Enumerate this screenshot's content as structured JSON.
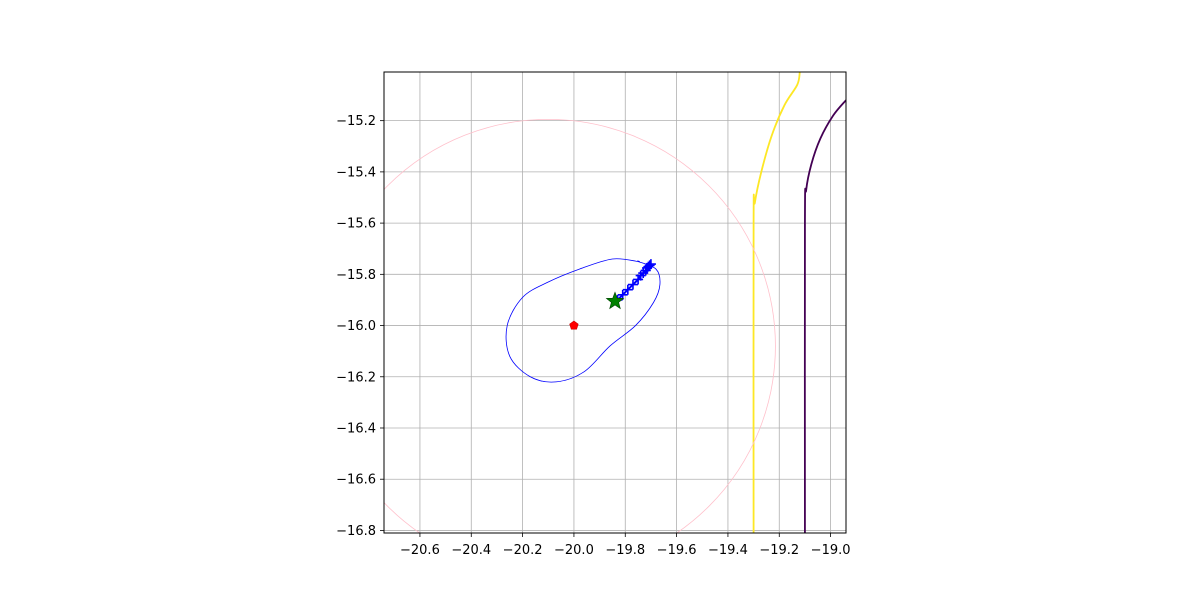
{
  "chart_data": {
    "type": "line",
    "title": "",
    "xlabel": "",
    "ylabel": "",
    "xlim": [
      -20.74,
      -18.94
    ],
    "ylim": [
      -16.81,
      -15.01
    ],
    "grid": true,
    "x_ticks": [
      -20.6,
      -20.4,
      -20.2,
      -20.0,
      -19.8,
      -19.6,
      -19.4,
      -19.2,
      -19.0
    ],
    "x_tick_labels": [
      "−20.6",
      "−20.4",
      "−20.2",
      "−20.0",
      "−19.8",
      "−19.6",
      "−19.4",
      "−19.2",
      "−19.0"
    ],
    "y_ticks": [
      -15.2,
      -15.4,
      -15.6,
      -15.8,
      -16.0,
      -16.2,
      -16.4,
      -16.6,
      -16.8
    ],
    "y_tick_labels": [
      "−15.2",
      "−15.4",
      "−15.6",
      "−15.8",
      "−16.0",
      "−16.2",
      "−16.4",
      "−16.6",
      "−16.8"
    ],
    "series": [
      {
        "kind": "contour",
        "color": "#fde725",
        "points": [
          [
            -19.3,
            -16.81
          ],
          [
            -19.3,
            -15.6
          ],
          [
            -19.295,
            -15.52
          ],
          [
            -19.27,
            -15.4
          ],
          [
            -19.23,
            -15.26
          ],
          [
            -19.18,
            -15.14
          ],
          [
            -19.13,
            -15.06
          ],
          [
            -19.12,
            -15.01
          ]
        ]
      },
      {
        "kind": "contour",
        "color": "#440154",
        "points": [
          [
            -19.1,
            -16.81
          ],
          [
            -19.1,
            -15.6
          ],
          [
            -19.095,
            -15.47
          ],
          [
            -19.075,
            -15.37
          ],
          [
            -19.04,
            -15.27
          ],
          [
            -18.99,
            -15.18
          ],
          [
            -18.94,
            -15.12
          ]
        ]
      },
      {
        "kind": "circle",
        "color": "#ffc0cb",
        "center": [
          -20.1,
          -16.08
        ],
        "radius": 0.885
      },
      {
        "kind": "closed-curve",
        "color": "#0000ff",
        "points": [
          [
            -19.75,
            -15.75
          ],
          [
            -19.85,
            -15.74
          ],
          [
            -19.98,
            -15.78
          ],
          [
            -20.1,
            -15.83
          ],
          [
            -20.2,
            -15.89
          ],
          [
            -20.26,
            -16.0
          ],
          [
            -20.25,
            -16.12
          ],
          [
            -20.17,
            -16.2
          ],
          [
            -20.07,
            -16.22
          ],
          [
            -19.96,
            -16.18
          ],
          [
            -19.86,
            -16.08
          ],
          [
            -19.76,
            -16.0
          ],
          [
            -19.69,
            -15.91
          ],
          [
            -19.665,
            -15.84
          ],
          [
            -19.68,
            -15.78
          ],
          [
            -19.75,
            -15.75
          ]
        ]
      },
      {
        "kind": "path-markers",
        "color": "#0000ff",
        "marker": "+",
        "points": [
          [
            -19.83,
            -15.9
          ],
          [
            -19.81,
            -15.88
          ],
          [
            -19.79,
            -15.86
          ],
          [
            -19.77,
            -15.84
          ],
          [
            -19.75,
            -15.82
          ],
          [
            -19.74,
            -15.805
          ],
          [
            -19.73,
            -15.795
          ],
          [
            -19.72,
            -15.785
          ],
          [
            -19.715,
            -15.775
          ],
          [
            -19.71,
            -15.77
          ],
          [
            -19.705,
            -15.765
          ],
          [
            -19.7,
            -15.76
          ]
        ]
      },
      {
        "kind": "point",
        "color": "#008000",
        "marker": "star",
        "points": [
          [
            -19.84,
            -15.905
          ]
        ]
      },
      {
        "kind": "point",
        "color": "#ff0000",
        "marker": "pentagon",
        "points": [
          [
            -20.0,
            -16.0
          ]
        ]
      }
    ]
  }
}
